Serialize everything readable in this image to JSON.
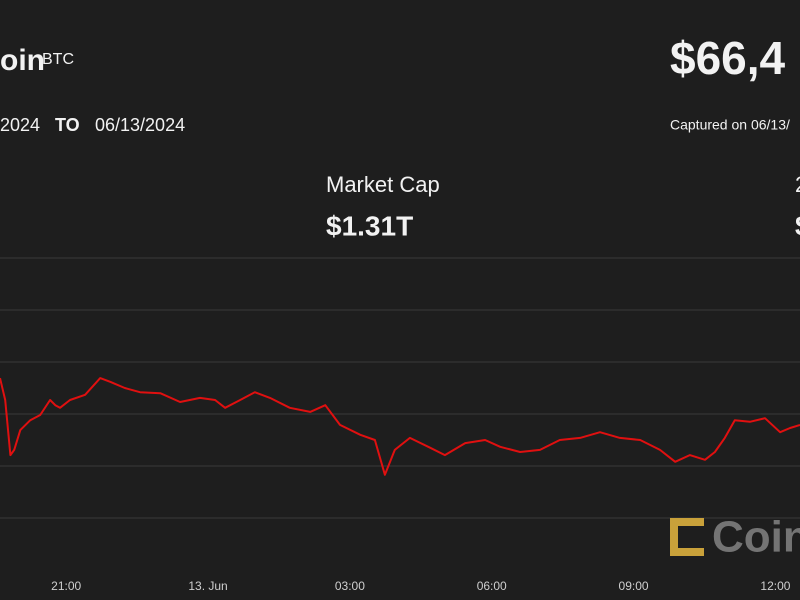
{
  "header": {
    "name": "oin",
    "symbol": "BTC",
    "price": "$66,4",
    "from_date": "2024",
    "to_word": "TO",
    "to_date": "06/13/2024",
    "captured": "Captured on 06/13/"
  },
  "stats": [
    {
      "label": "Market Cap",
      "value": "$1.31T"
    },
    {
      "label": "2",
      "value": "$"
    }
  ],
  "watermark": "Coin",
  "chart_data": {
    "type": "line",
    "xlim": [
      -1.4,
      15.52
    ],
    "xticks": [
      {
        "value": 0,
        "label": "21:00"
      },
      {
        "value": 3,
        "label": "13. Jun"
      },
      {
        "value": 6,
        "label": "03:00"
      },
      {
        "value": 9,
        "label": "06:00"
      },
      {
        "value": 12,
        "label": "09:00"
      },
      {
        "value": 15,
        "label": "12:00"
      }
    ],
    "ylim": [
      -1,
      5
    ],
    "grid_lines": [
      0,
      1,
      2,
      3,
      4,
      5
    ],
    "series": [
      {
        "color": "#e01010",
        "x": [
          -1.4,
          -1.29,
          -1.18,
          -1.1,
          -0.97,
          -0.76,
          -0.55,
          -0.34,
          -0.23,
          -0.13,
          0.08,
          0.4,
          0.72,
          0.93,
          1.24,
          1.56,
          1.99,
          2.41,
          2.83,
          3.15,
          3.36,
          3.68,
          3.99,
          4.31,
          4.73,
          5.16,
          5.48,
          5.79,
          6.22,
          6.53,
          6.74,
          6.95,
          7.27,
          7.7,
          8.01,
          8.44,
          8.86,
          9.18,
          9.6,
          10.02,
          10.44,
          10.87,
          11.29,
          11.71,
          12.14,
          12.56,
          12.88,
          13.19,
          13.51,
          13.72,
          13.93,
          14.14,
          14.46,
          14.78,
          15.1,
          15.31,
          15.52
        ],
        "values": [
          2.69,
          2.27,
          1.21,
          1.31,
          1.69,
          1.88,
          1.98,
          2.27,
          2.17,
          2.12,
          2.27,
          2.37,
          2.69,
          2.62,
          2.5,
          2.42,
          2.4,
          2.23,
          2.31,
          2.27,
          2.12,
          2.27,
          2.42,
          2.31,
          2.12,
          2.04,
          2.17,
          1.79,
          1.6,
          1.5,
          0.83,
          1.31,
          1.54,
          1.35,
          1.21,
          1.44,
          1.5,
          1.37,
          1.27,
          1.31,
          1.5,
          1.54,
          1.65,
          1.54,
          1.5,
          1.31,
          1.08,
          1.21,
          1.12,
          1.27,
          1.54,
          1.88,
          1.85,
          1.92,
          1.65,
          1.73,
          1.79
        ]
      }
    ]
  }
}
